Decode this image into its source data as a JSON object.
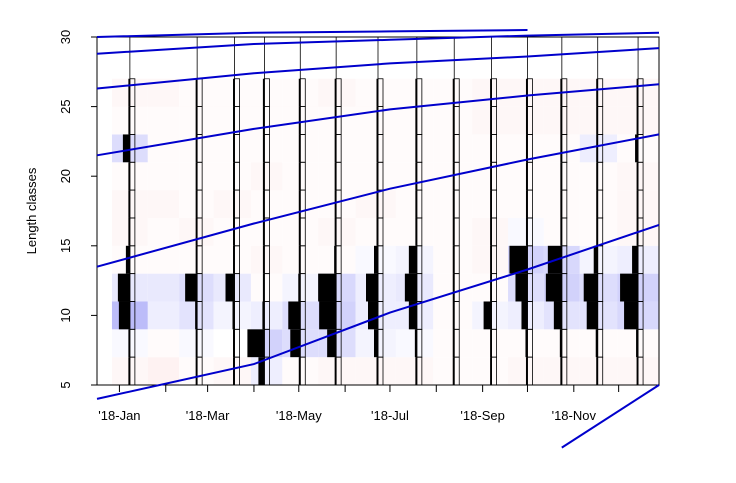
{
  "chart_data": {
    "type": "heatmap",
    "ylabel": "Length classes",
    "xlabel": "",
    "x_axis": {
      "tick_labels": [
        "'18-Jan",
        "'18-Mar",
        "'18-May",
        "'18-Jul",
        "'18-Sep",
        "'18-Nov"
      ],
      "tick_dates": [
        "2018-01-01",
        "2018-03-01",
        "2018-05-01",
        "2018-07-01",
        "2018-09-01",
        "2018-11-01"
      ],
      "minor_tick_dates": [
        "2018-01-01",
        "2018-02-01",
        "2018-03-01",
        "2018-04-01",
        "2018-05-01",
        "2018-06-01",
        "2018-07-01",
        "2018-08-01",
        "2018-09-01",
        "2018-10-01",
        "2018-11-01",
        "2018-12-01"
      ],
      "range": [
        "2017-12-17",
        "2018-12-28"
      ]
    },
    "y_axis": {
      "ticks": [
        5,
        10,
        15,
        20,
        25,
        30
      ],
      "range": [
        5,
        30
      ]
    },
    "length_class_width": 2,
    "length_classes": [
      6,
      8,
      10,
      12,
      14,
      16,
      18,
      20,
      22,
      24,
      26
    ],
    "samples": [
      {
        "date": "2018-01-08",
        "freq": [
          0.03,
          0.05,
          0.55,
          0.6,
          0.2,
          0.05,
          0.05,
          0.05,
          0.35,
          0.05,
          0.02
        ]
      },
      {
        "date": "2018-02-22",
        "freq": [
          0.02,
          0.05,
          0.1,
          0.6,
          0.05,
          0.05,
          0.03,
          0.02,
          0.02,
          0.02,
          0.02
        ]
      },
      {
        "date": "2018-03-19",
        "freq": [
          0.02,
          0.05,
          0.1,
          0.45,
          0.05,
          0.03,
          0.02,
          0.02,
          0.02,
          0.02,
          0.02
        ]
      },
      {
        "date": "2018-04-08",
        "freq": [
          0.3,
          0.85,
          0.1,
          0.05,
          0.03,
          0.03,
          0.02,
          0.02,
          0.02,
          0.02,
          0.02
        ]
      },
      {
        "date": "2018-05-02",
        "freq": [
          0.05,
          0.5,
          0.6,
          0.1,
          0.05,
          0.03,
          0.02,
          0.02,
          0.02,
          0.02,
          0.02
        ]
      },
      {
        "date": "2018-05-26",
        "freq": [
          0.05,
          0.45,
          0.85,
          0.9,
          0.1,
          0.03,
          0.02,
          0.02,
          0.02,
          0.02,
          0.02
        ]
      },
      {
        "date": "2018-06-23",
        "freq": [
          0.03,
          0.2,
          0.5,
          0.6,
          0.2,
          0.05,
          0.02,
          0.02,
          0.02,
          0.02,
          0.02
        ]
      },
      {
        "date": "2018-07-19",
        "freq": [
          0.03,
          0.1,
          0.4,
          0.6,
          0.4,
          0.05,
          0.02,
          0.02,
          0.02,
          0.02,
          0.02
        ]
      },
      {
        "date": "2018-08-13",
        "freq": [
          0.02,
          0.05,
          0.05,
          0.03,
          0.02,
          0.02,
          0.02,
          0.02,
          0.02,
          0.02,
          0.02
        ]
      },
      {
        "date": "2018-09-07",
        "freq": [
          0.02,
          0.05,
          0.4,
          0.05,
          0.03,
          0.02,
          0.02,
          0.02,
          0.02,
          0.02,
          0.02
        ]
      },
      {
        "date": "2018-10-01",
        "freq": [
          0.03,
          0.1,
          0.3,
          0.6,
          0.9,
          0.05,
          0.02,
          0.02,
          0.02,
          0.02,
          0.02
        ]
      },
      {
        "date": "2018-10-24",
        "freq": [
          0.03,
          0.1,
          0.4,
          0.8,
          0.7,
          0.05,
          0.02,
          0.02,
          0.02,
          0.02,
          0.03
        ]
      },
      {
        "date": "2018-11-17",
        "freq": [
          0.03,
          0.1,
          0.55,
          0.7,
          0.2,
          0.03,
          0.02,
          0.02,
          0.02,
          0.02,
          0.02
        ]
      },
      {
        "date": "2018-12-14",
        "freq": [
          0.03,
          0.1,
          0.7,
          0.9,
          0.3,
          0.03,
          0.02,
          0.02,
          0.15,
          0.02,
          0.02
        ]
      }
    ],
    "heatmap_columns": [
      {
        "start": "2017-12-27",
        "end": "2018-01-20",
        "residuals": [
          -0.1,
          0.05,
          0.6,
          0.2,
          -0.05,
          -0.1,
          -0.1,
          -0.05,
          0.3,
          -0.05,
          -0.1
        ]
      },
      {
        "start": "2018-01-20",
        "end": "2018-02-10",
        "residuals": [
          -0.15,
          -0.05,
          0.15,
          0.2,
          -0.05,
          -0.05,
          -0.1,
          -0.05,
          -0.05,
          -0.05,
          -0.1
        ]
      },
      {
        "start": "2018-02-10",
        "end": "2018-03-05",
        "residuals": [
          -0.05,
          0.05,
          0.25,
          0.3,
          -0.05,
          -0.1,
          -0.05,
          -0.05,
          -0.05,
          -0.05,
          -0.05
        ]
      },
      {
        "start": "2018-03-05",
        "end": "2018-03-30",
        "residuals": [
          -0.1,
          0.0,
          0.1,
          0.2,
          -0.05,
          -0.05,
          -0.1,
          -0.05,
          -0.05,
          -0.05,
          -0.05
        ]
      },
      {
        "start": "2018-03-30",
        "end": "2018-04-20",
        "residuals": [
          0.15,
          0.4,
          0.15,
          -0.05,
          -0.1,
          -0.05,
          -0.05,
          -0.1,
          -0.05,
          -0.05,
          -0.05
        ]
      },
      {
        "start": "2018-04-20",
        "end": "2018-05-14",
        "residuals": [
          -0.05,
          0.3,
          0.3,
          0.1,
          -0.05,
          -0.05,
          -0.05,
          -0.05,
          -0.05,
          -0.05,
          -0.05
        ]
      },
      {
        "start": "2018-05-14",
        "end": "2018-06-08",
        "residuals": [
          -0.1,
          0.3,
          0.4,
          0.35,
          -0.05,
          -0.1,
          -0.05,
          -0.05,
          -0.05,
          -0.05,
          -0.1
        ]
      },
      {
        "start": "2018-06-08",
        "end": "2018-07-05",
        "residuals": [
          -0.1,
          0.1,
          0.15,
          0.15,
          0.05,
          -0.05,
          -0.1,
          -0.05,
          -0.05,
          -0.05,
          -0.05
        ]
      },
      {
        "start": "2018-07-05",
        "end": "2018-07-30",
        "residuals": [
          -0.1,
          0.05,
          0.15,
          0.2,
          0.1,
          -0.05,
          -0.05,
          -0.05,
          -0.05,
          -0.05,
          -0.05
        ]
      },
      {
        "start": "2018-07-30",
        "end": "2018-08-25",
        "residuals": [
          -0.05,
          -0.05,
          -0.05,
          -0.05,
          -0.05,
          -0.05,
          -0.05,
          -0.05,
          -0.05,
          -0.05,
          -0.05
        ]
      },
      {
        "start": "2018-08-25",
        "end": "2018-09-18",
        "residuals": [
          -0.05,
          -0.05,
          0.1,
          -0.05,
          -0.1,
          -0.1,
          -0.05,
          -0.05,
          -0.05,
          -0.1,
          -0.1
        ]
      },
      {
        "start": "2018-09-18",
        "end": "2018-10-12",
        "residuals": [
          -0.1,
          -0.05,
          0.15,
          0.3,
          0.4,
          0.05,
          -0.05,
          -0.05,
          -0.05,
          -0.1,
          -0.1
        ]
      },
      {
        "start": "2018-10-12",
        "end": "2018-11-05",
        "residuals": [
          -0.1,
          -0.05,
          0.25,
          0.4,
          0.35,
          -0.05,
          -0.05,
          -0.05,
          -0.05,
          -0.1,
          -0.1
        ]
      },
      {
        "start": "2018-11-05",
        "end": "2018-11-30",
        "residuals": [
          -0.1,
          -0.05,
          0.25,
          0.3,
          0.1,
          -0.05,
          -0.05,
          -0.05,
          0.15,
          -0.1,
          -0.1
        ]
      },
      {
        "start": "2018-11-30",
        "end": "2018-12-28",
        "residuals": [
          -0.1,
          -0.05,
          0.35,
          0.4,
          0.15,
          -0.1,
          -0.1,
          -0.1,
          -0.05,
          -0.1,
          -0.1
        ]
      }
    ],
    "growth_curves": [
      [
        [
          "2017-12-17",
          4.0
        ],
        [
          "2018-04-01",
          6.5
        ],
        [
          "2018-07-01",
          10.2
        ],
        [
          "2018-10-01",
          13.3
        ],
        [
          "2018-12-28",
          16.5
        ]
      ],
      [
        [
          "2017-12-17",
          13.5
        ],
        [
          "2018-04-01",
          16.6
        ],
        [
          "2018-07-01",
          19.1
        ],
        [
          "2018-10-01",
          21.2
        ],
        [
          "2018-12-28",
          23.0
        ]
      ],
      [
        [
          "2017-12-17",
          21.5
        ],
        [
          "2018-04-01",
          23.4
        ],
        [
          "2018-07-01",
          24.8
        ],
        [
          "2018-10-01",
          25.8
        ],
        [
          "2018-12-28",
          26.6
        ]
      ],
      [
        [
          "2017-12-17",
          26.3
        ],
        [
          "2018-04-01",
          27.4
        ],
        [
          "2018-07-01",
          28.1
        ],
        [
          "2018-10-01",
          28.6
        ],
        [
          "2018-12-28",
          29.2
        ]
      ],
      [
        [
          "2017-12-17",
          28.8
        ],
        [
          "2018-04-01",
          29.5
        ],
        [
          "2018-07-01",
          29.8
        ],
        [
          "2018-10-01",
          30.1
        ],
        [
          "2018-12-28",
          30.3
        ]
      ],
      [
        [
          "2017-12-17",
          30.0
        ],
        [
          "2018-04-01",
          30.3
        ],
        [
          "2018-07-01",
          30.4
        ],
        [
          "2018-10-01",
          30.5
        ]
      ],
      [
        [
          "2018-10-24",
          0.5
        ],
        [
          "2018-12-28",
          5.0
        ]
      ]
    ],
    "colors": {
      "positive": "#3333ee",
      "negative": "#ee6666",
      "curve": "#0000cc",
      "frequency_bar": "#000000"
    },
    "grid": false,
    "legend": "none"
  }
}
